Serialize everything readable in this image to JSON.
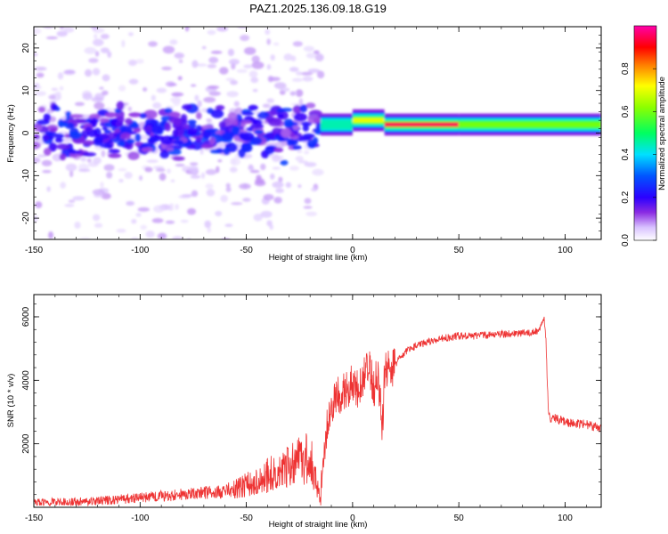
{
  "title": "PAZ1.2025.136.09.18.G19",
  "chart_data": [
    {
      "type": "heatmap",
      "xlabel": "Height of straight line (km)",
      "ylabel": "Frequency (Hz)",
      "xlim": [
        -150,
        117
      ],
      "ylim": [
        -25,
        25
      ],
      "xticks": [
        -150,
        -100,
        -50,
        0,
        50,
        100
      ],
      "yticks": [
        -20,
        -10,
        0,
        10,
        20
      ],
      "colorbar": {
        "label": "Normalized spectral amplitude",
        "range": [
          0,
          1
        ],
        "ticks": [
          "0.0",
          "0.2",
          "0.4",
          "0.6",
          "0.8"
        ]
      },
      "segments": [
        {
          "x_start": -150,
          "x_end": -15,
          "center_freq": 0,
          "amplitude": 0.2,
          "pattern": "scattered blobs, spread about +/-5 Hz"
        },
        {
          "x_start": -15,
          "x_end": 0,
          "center_freq": 2,
          "amplitude": 0.45,
          "pattern": "narrowing band"
        },
        {
          "x_start": 0,
          "x_end": 15,
          "center_freq": 3,
          "amplitude": 0.7,
          "pattern": "narrow band"
        },
        {
          "x_start": 15,
          "x_end": 50,
          "center_freq": 2,
          "amplitude": 0.95,
          "pattern": "narrow band, peak amplitude"
        },
        {
          "x_start": 50,
          "x_end": 117,
          "center_freq": 2,
          "amplitude": 0.6,
          "pattern": "narrow band"
        }
      ],
      "grid": false
    },
    {
      "type": "line",
      "xlabel": "Height of straight line (km)",
      "ylabel": "SNR (10 * v/v)",
      "xlim": [
        -150,
        117
      ],
      "ylim": [
        0,
        6700
      ],
      "xticks": [
        -150,
        -100,
        -50,
        0,
        50,
        100
      ],
      "yticks": [
        2000,
        4000,
        6000
      ],
      "color": "#ee3333",
      "series": [
        {
          "x": [
            -150,
            -120,
            -100,
            -80,
            -60,
            -50,
            -40,
            -30,
            -20,
            -15,
            -14,
            -12,
            -10,
            -8,
            -5,
            0,
            3,
            5,
            8,
            10,
            12,
            14,
            15,
            20,
            25,
            30,
            40,
            50,
            60,
            70,
            80,
            85,
            88,
            90,
            91,
            92,
            93,
            95,
            100,
            110,
            117
          ],
          "y": [
            150,
            200,
            300,
            400,
            500,
            700,
            1000,
            1300,
            1600,
            200,
            1500,
            2600,
            3100,
            3400,
            3600,
            3900,
            3600,
            4100,
            4300,
            3800,
            4200,
            2500,
            4200,
            4500,
            4900,
            5100,
            5300,
            5400,
            5400,
            5450,
            5500,
            5500,
            5600,
            6000,
            5200,
            3200,
            2700,
            2800,
            2700,
            2600,
            2500
          ]
        }
      ],
      "grid": false
    }
  ]
}
